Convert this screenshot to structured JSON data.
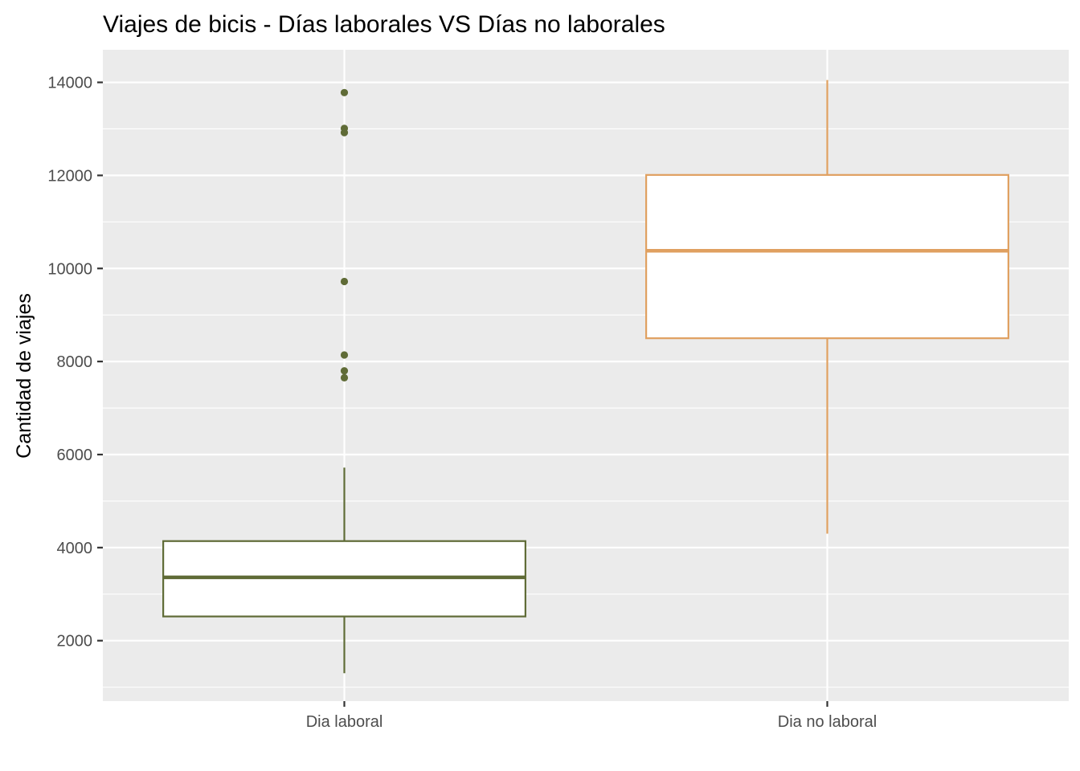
{
  "chart_data": {
    "type": "boxplot",
    "title": "Viajes de bicis - Días laborales VS Días no laborales",
    "xlabel": "",
    "ylabel": "Cantidad de viajes",
    "ylim": [
      700,
      14700
    ],
    "yticks": [
      2000,
      4000,
      6000,
      8000,
      10000,
      12000,
      14000
    ],
    "y_tick_labels": [
      "2000",
      "4000",
      "6000",
      "8000",
      "10000",
      "12000",
      "14000"
    ],
    "grid": true,
    "legend": "none",
    "categories": [
      "Dia laboral",
      "Dia no laboral"
    ],
    "series": [
      {
        "category": "Dia laboral",
        "color": "#5f6b36",
        "whisker_low": 1300,
        "q1": 2520,
        "median": 3360,
        "q3": 4140,
        "whisker_high": 5720,
        "outliers": [
          13780,
          13010,
          12920,
          9720,
          8140,
          7800,
          7650
        ]
      },
      {
        "category": "Dia no laboral",
        "color": "#e0a060",
        "whisker_low": 4300,
        "q1": 8500,
        "median": 10380,
        "q3": 12010,
        "whisker_high": 14050,
        "outliers": []
      }
    ]
  },
  "colors": {
    "panel_background": "#ebebeb",
    "grid_major": "#ffffff",
    "box_fill": "#ffffff",
    "tick_color": "#333333"
  }
}
